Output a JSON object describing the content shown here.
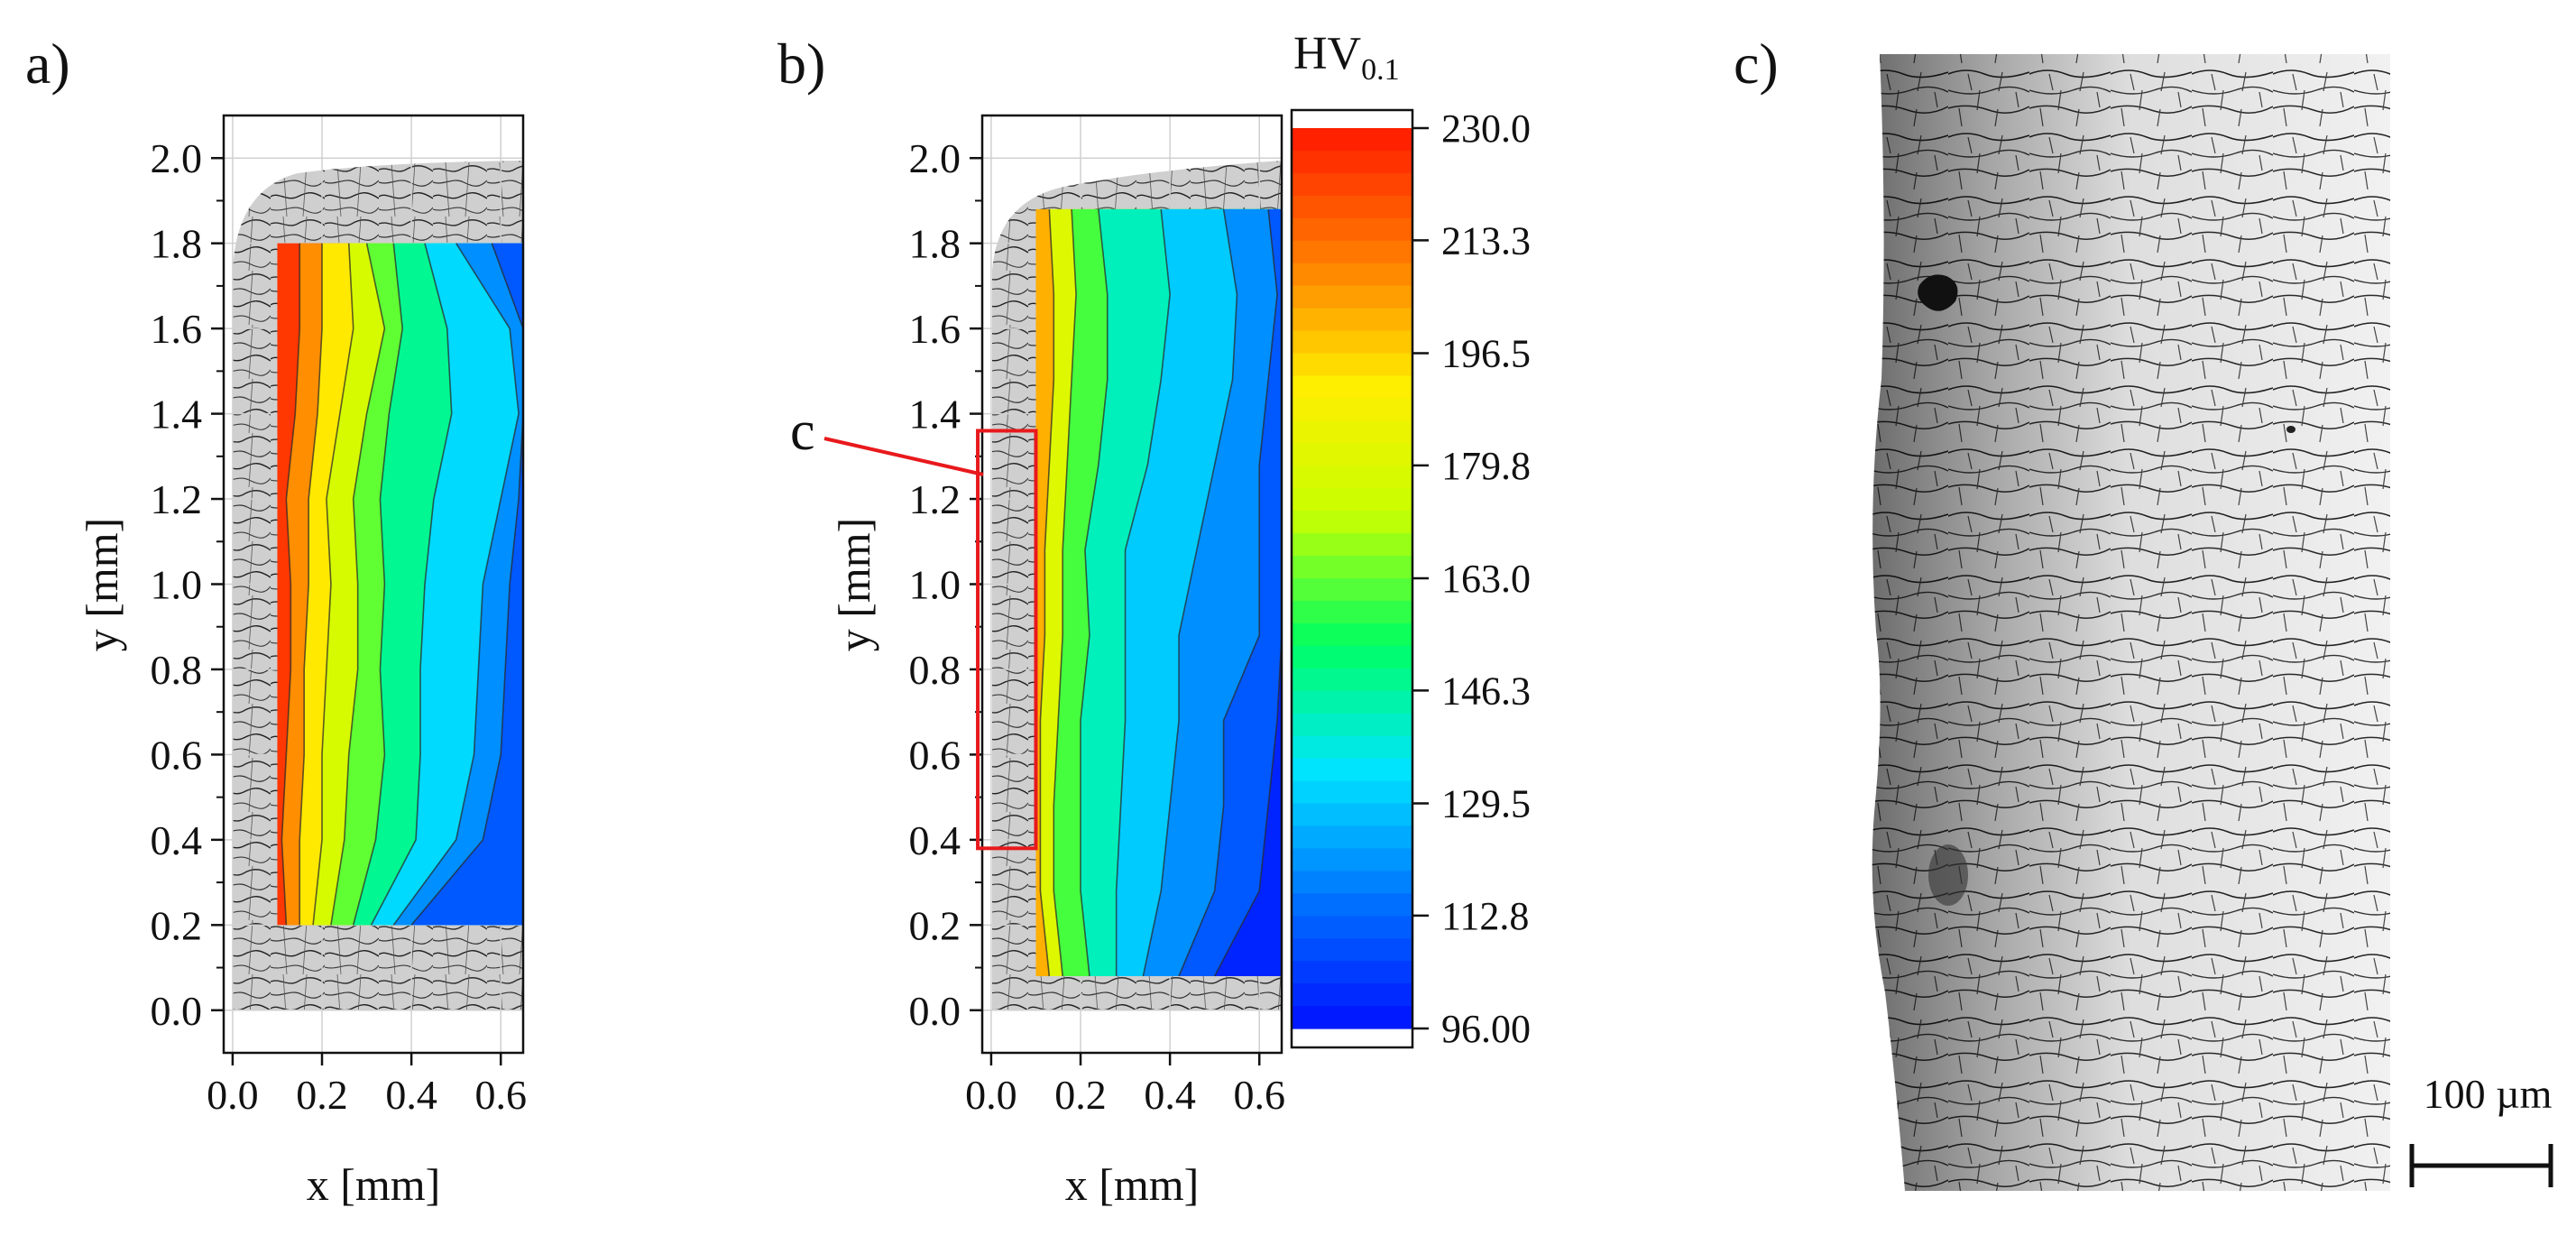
{
  "panels": {
    "a": {
      "label": "a)"
    },
    "b": {
      "label": "b)",
      "callout": "c"
    },
    "c": {
      "label": "c)",
      "scale_bar": "100 µm"
    }
  },
  "colors": {
    "callout": "#e8191c",
    "colormap": [
      "#0010ff",
      "#0072ff",
      "#00e5ff",
      "#00ff60",
      "#c8ff00",
      "#ffee00",
      "#ff7a00",
      "#ff1800"
    ]
  },
  "chart_data": [
    {
      "type": "heatmap",
      "panel": "a",
      "title": "",
      "xlabel": "x [mm]",
      "ylabel": "y [mm]",
      "xlim": [
        -0.02,
        0.65
      ],
      "ylim": [
        -0.1,
        2.1
      ],
      "x_ticks": [
        0.0,
        0.2,
        0.4,
        0.6
      ],
      "y_ticks": [
        0.0,
        0.2,
        0.4,
        0.6,
        0.8,
        1.0,
        1.2,
        1.4,
        1.6,
        1.8,
        2.0
      ],
      "x_tick_labels": [
        "0.0",
        "0.2",
        "0.4",
        "0.6"
      ],
      "y_tick_labels": [
        "0.0",
        "0.2",
        "0.4",
        "0.6",
        "0.8",
        "1.0",
        "1.2",
        "1.4",
        "1.6",
        "1.8",
        "2.0"
      ],
      "grid": true,
      "measured_region": {
        "x_range": [
          0.1,
          0.65
        ],
        "y_range": [
          0.2,
          1.8
        ]
      },
      "contour_levels": [
        215,
        200,
        185,
        170,
        155,
        140,
        125,
        115
      ],
      "contour_x_by_level": [
        [
          0.12,
          0.11,
          0.12,
          0.13,
          0.13,
          0.12,
          0.14,
          0.15,
          0.15
        ],
        [
          0.15,
          0.15,
          0.16,
          0.16,
          0.17,
          0.17,
          0.19,
          0.2,
          0.2
        ],
        [
          0.18,
          0.2,
          0.2,
          0.21,
          0.22,
          0.21,
          0.24,
          0.27,
          0.26
        ],
        [
          0.22,
          0.25,
          0.26,
          0.28,
          0.28,
          0.27,
          0.3,
          0.34,
          0.3
        ],
        [
          0.27,
          0.32,
          0.34,
          0.33,
          0.34,
          0.33,
          0.35,
          0.38,
          0.36
        ],
        [
          0.31,
          0.41,
          0.42,
          0.42,
          0.43,
          0.45,
          0.49,
          0.48,
          0.43
        ],
        [
          0.36,
          0.5,
          0.54,
          0.55,
          0.56,
          0.6,
          0.64,
          0.62,
          0.5
        ],
        [
          0.4,
          0.56,
          0.6,
          0.61,
          0.62,
          0.64,
          0.65,
          0.65,
          0.58
        ]
      ],
      "contour_y": [
        0.2,
        0.4,
        0.6,
        0.8,
        1.0,
        1.2,
        1.4,
        1.6,
        1.8
      ]
    },
    {
      "type": "heatmap",
      "panel": "b",
      "title": "",
      "xlabel": "x [mm]",
      "ylabel": "y [mm]",
      "xlim": [
        -0.02,
        0.65
      ],
      "ylim": [
        -0.1,
        2.1
      ],
      "x_ticks": [
        0.0,
        0.2,
        0.4,
        0.6
      ],
      "y_ticks": [
        0.0,
        0.2,
        0.4,
        0.6,
        0.8,
        1.0,
        1.2,
        1.4,
        1.6,
        1.8,
        2.0
      ],
      "x_tick_labels": [
        "0.0",
        "0.2",
        "0.4",
        "0.6"
      ],
      "y_tick_labels": [
        "0.0",
        "0.2",
        "0.4",
        "0.6",
        "0.8",
        "1.0",
        "1.2",
        "1.4",
        "1.6",
        "1.8",
        "2.0"
      ],
      "grid": true,
      "measured_region": {
        "x_range": [
          0.1,
          0.65
        ],
        "y_range": [
          0.08,
          1.88
        ]
      },
      "contour_levels": [
        190,
        170,
        150,
        135,
        125,
        115,
        105
      ],
      "contour_x_by_level": [
        [
          0.13,
          0.11,
          0.11,
          0.11,
          0.12,
          0.12,
          0.13,
          0.14,
          0.14,
          0.13
        ],
        [
          0.16,
          0.14,
          0.14,
          0.15,
          0.16,
          0.16,
          0.17,
          0.18,
          0.19,
          0.18
        ],
        [
          0.22,
          0.2,
          0.2,
          0.2,
          0.22,
          0.21,
          0.24,
          0.26,
          0.26,
          0.24
        ],
        [
          0.28,
          0.28,
          0.29,
          0.3,
          0.3,
          0.3,
          0.35,
          0.38,
          0.4,
          0.38
        ],
        [
          0.34,
          0.38,
          0.4,
          0.42,
          0.42,
          0.46,
          0.5,
          0.54,
          0.55,
          0.52
        ],
        [
          0.42,
          0.5,
          0.52,
          0.52,
          0.6,
          0.6,
          0.6,
          0.62,
          0.64,
          0.62
        ],
        [
          0.5,
          0.6,
          0.62,
          0.64,
          0.65,
          0.65,
          0.65,
          0.65,
          0.65,
          0.65
        ]
      ],
      "contour_y": [
        0.08,
        0.28,
        0.48,
        0.68,
        0.88,
        1.08,
        1.28,
        1.48,
        1.68,
        1.88
      ],
      "highlight_box": {
        "x_range": [
          -0.03,
          0.1
        ],
        "y_range": [
          0.38,
          1.36
        ],
        "label": "c"
      }
    },
    {
      "type": "heatmap",
      "role": "colorbar",
      "title": "HV",
      "title_subscript": "0.1",
      "range": [
        96.0,
        230.0
      ],
      "tick_values": [
        230.0,
        213.3,
        196.5,
        179.8,
        163.0,
        146.3,
        129.5,
        112.8,
        96.0
      ],
      "tick_labels": [
        "230.0",
        "213.3",
        "196.5",
        "179.8",
        "163.0",
        "146.3",
        "129.5",
        "112.8",
        "96.00"
      ],
      "levels": 40
    }
  ]
}
